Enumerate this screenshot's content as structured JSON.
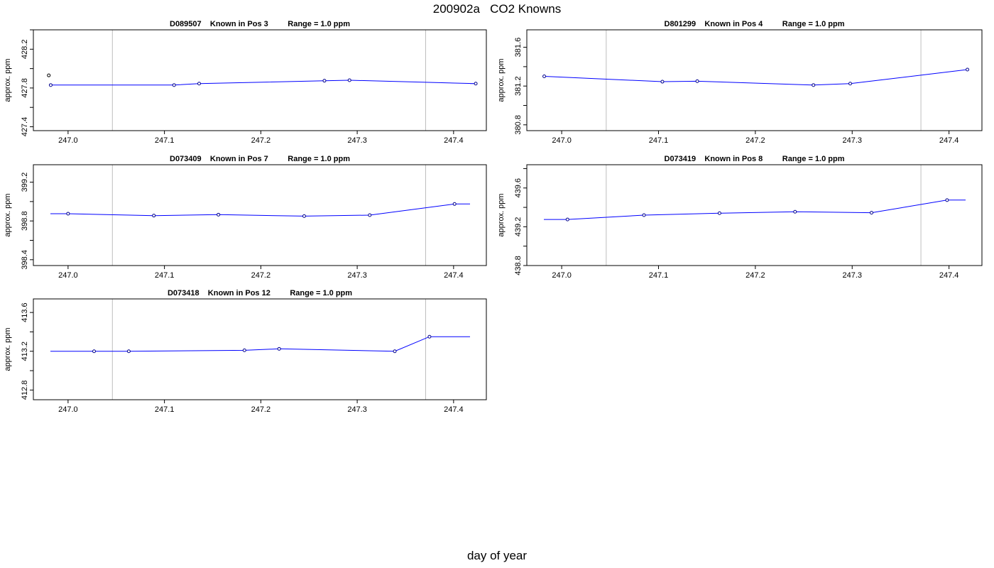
{
  "title": "200902a   CO2 Knowns",
  "xlabel": "day of year",
  "colors": {
    "series": "#0000ff",
    "marker": "#00008b",
    "outlier": "#000000",
    "refline": "#bebebe",
    "frame": "#000000"
  },
  "chart_data": [
    {
      "type": "line",
      "title": "D089507    Known in Pos 3         Range = 1.0 ppm",
      "ylabel": "approx. ppm",
      "xlim": [
        246.964,
        247.434
      ],
      "ylim": [
        427.36,
        428.4
      ],
      "xticks": [
        247.0,
        247.1,
        247.2,
        247.3,
        247.4
      ],
      "yticks": [
        427.4,
        427.8,
        428.2
      ],
      "ytick_labels": [
        "427.4",
        "427.8",
        "428.2"
      ],
      "reference_lines": [
        247.046,
        247.371
      ],
      "flagged_points": [
        {
          "x": 246.98,
          "y": 427.93
        }
      ],
      "x": [
        246.982,
        247.11,
        247.136,
        247.266,
        247.292,
        247.423
      ],
      "y": [
        427.83,
        427.83,
        427.845,
        427.875,
        427.88,
        427.845
      ]
    },
    {
      "type": "line",
      "title": "D801299    Known in Pos 4         Range = 1.0 ppm",
      "ylabel": "approx. ppm",
      "xlim": [
        246.964,
        247.434
      ],
      "ylim": [
        380.74,
        381.78
      ],
      "xticks": [
        247.0,
        247.1,
        247.2,
        247.3,
        247.4
      ],
      "yticks": [
        380.8,
        381.2,
        381.6
      ],
      "ytick_labels": [
        "380.8",
        "381.2",
        "381.6"
      ],
      "reference_lines": [
        247.046,
        247.371
      ],
      "flagged_points": [],
      "x": [
        246.982,
        247.104,
        247.14,
        247.26,
        247.298,
        247.419
      ],
      "y": [
        381.3,
        381.245,
        381.25,
        381.21,
        381.225,
        381.37
      ]
    },
    {
      "type": "line",
      "title": "D073409    Known in Pos 7         Range = 1.0 ppm",
      "ylabel": "approx. ppm",
      "xlim": [
        246.964,
        247.434
      ],
      "ylim": [
        398.34,
        399.38
      ],
      "xticks": [
        247.0,
        247.1,
        247.2,
        247.3,
        247.4
      ],
      "yticks": [
        398.4,
        398.8,
        399.2
      ],
      "ytick_labels": [
        "398.4",
        "398.8",
        "399.2"
      ],
      "reference_lines": [
        247.046,
        247.371
      ],
      "flagged_points": [],
      "x": [
        247.0,
        247.089,
        247.156,
        247.245,
        247.313,
        247.401
      ],
      "y": [
        398.875,
        398.855,
        398.865,
        398.85,
        398.86,
        398.975
      ]
    },
    {
      "type": "line",
      "title": "D073419    Known in Pos 8         Range = 1.0 ppm",
      "ylabel": "approx. ppm",
      "xlim": [
        246.964,
        247.434
      ],
      "ylim": [
        438.8,
        439.84
      ],
      "xticks": [
        247.0,
        247.1,
        247.2,
        247.3,
        247.4
      ],
      "yticks": [
        438.8,
        439.2,
        439.6
      ],
      "ytick_labels": [
        "438.8",
        "439.2",
        "439.6"
      ],
      "reference_lines": [
        247.046,
        247.371
      ],
      "flagged_points": [],
      "x": [
        247.006,
        247.085,
        247.163,
        247.241,
        247.32,
        247.398
      ],
      "y": [
        439.275,
        439.32,
        439.34,
        439.355,
        439.345,
        439.475
      ]
    },
    {
      "type": "line",
      "title": "D073418    Known in Pos 12         Range = 1.0 ppm",
      "ylabel": "approx. ppm",
      "xlim": [
        246.964,
        247.434
      ],
      "ylim": [
        412.7,
        413.74
      ],
      "xticks": [
        247.0,
        247.1,
        247.2,
        247.3,
        247.4
      ],
      "yticks": [
        412.8,
        413.2,
        413.6
      ],
      "ytick_labels": [
        "412.8",
        "413.2",
        "413.6"
      ],
      "reference_lines": [
        247.046,
        247.371
      ],
      "flagged_points": [],
      "x": [
        247.027,
        247.063,
        247.183,
        247.219,
        247.339,
        247.375
      ],
      "y": [
        413.2,
        413.2,
        413.21,
        413.225,
        413.2,
        413.35
      ]
    }
  ]
}
